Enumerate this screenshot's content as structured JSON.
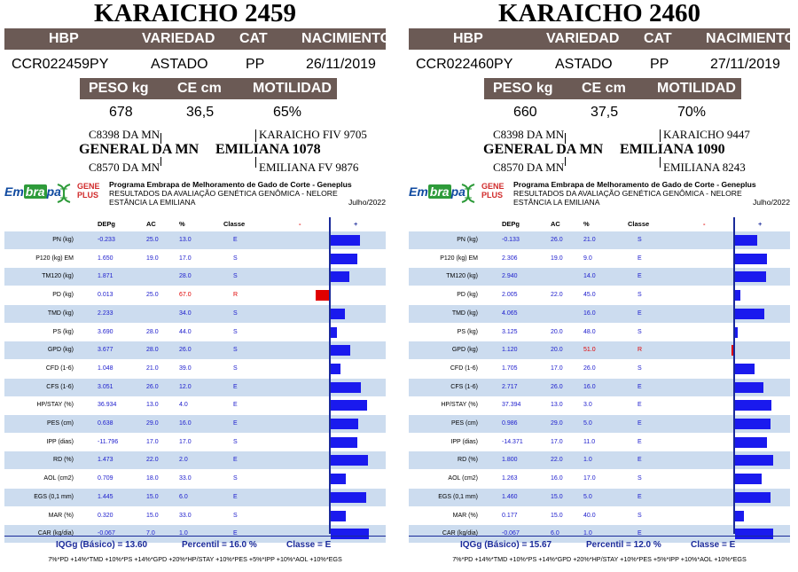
{
  "cards": [
    {
      "title": "KARAICHO 2459",
      "headers": [
        "HBP",
        "VARIEDAD",
        "CAT",
        "NACIMIENTO"
      ],
      "values": [
        "CCR022459PY",
        "ASTADO",
        "PP",
        "26/11/2019"
      ],
      "sub_headers": [
        "PESO kg",
        "CE cm",
        "MOTILIDAD"
      ],
      "sub_values": [
        "678",
        "36,5",
        "65%"
      ],
      "pedigree": {
        "sire_sire": "C8398 DA MN",
        "sire": "GENERAL DA MN",
        "sire_dam": "C8570 DA MN",
        "dam_sire": "KARAICHO FIV 9705",
        "dam": "EMILIANA 1078",
        "dam_dam": "EMILIANA FV 9876"
      },
      "logo_embrapa_a": "Em",
      "logo_embrapa_b": "bra",
      "logo_embrapa_c": "pa",
      "logo_gene_1": "GENE",
      "logo_gene_2": "PLUS",
      "program_line1": "Programa Embrapa de Melhoramento de Gado de Corte - Geneplus",
      "program_line2": "RESULTADOS DA AVALIAÇÃO GENÉTICA GENÔMICA - NELORE",
      "program_line3": "ESTÂNCIA LA EMILIANA",
      "date": "Julho/2022",
      "table_headers": [
        "DEPg",
        "AC",
        "%",
        "Classe",
        "-",
        "+"
      ],
      "rows": [
        {
          "label": "PN (kg)",
          "dep": "-0.233",
          "ac": "25.0",
          "pct": "13.0",
          "cls": "E",
          "bar": 0.55,
          "neg": false
        },
        {
          "label": "P120 (kg) EM",
          "dep": "1.650",
          "ac": "19.0",
          "pct": "17.0",
          "cls": "S",
          "bar": 0.5,
          "neg": false
        },
        {
          "label": "TM120 (kg)",
          "dep": "1.871",
          "ac": "",
          "pct": "28.0",
          "cls": "S",
          "bar": 0.35,
          "neg": false
        },
        {
          "label": "PD (kg)",
          "dep": "0.013",
          "ac": "25.0",
          "pct": "67.0",
          "cls": "R",
          "bar": 0.25,
          "neg": true
        },
        {
          "label": "TMD (kg)",
          "dep": "2.233",
          "ac": "",
          "pct": "34.0",
          "cls": "S",
          "bar": 0.27,
          "neg": false
        },
        {
          "label": "PS (kg)",
          "dep": "3.690",
          "ac": "28.0",
          "pct": "44.0",
          "cls": "S",
          "bar": 0.12,
          "neg": false
        },
        {
          "label": "GPD (kg)",
          "dep": "3.677",
          "ac": "28.0",
          "pct": "26.0",
          "cls": "S",
          "bar": 0.37,
          "neg": false
        },
        {
          "label": "CFD (1-6)",
          "dep": "1.048",
          "ac": "21.0",
          "pct": "39.0",
          "cls": "S",
          "bar": 0.18,
          "neg": false
        },
        {
          "label": "CFS (1-6)",
          "dep": "3.051",
          "ac": "26.0",
          "pct": "12.0",
          "cls": "E",
          "bar": 0.57,
          "neg": false
        },
        {
          "label": "HP/STAY (%)",
          "dep": "36.934",
          "ac": "13.0",
          "pct": "4.0",
          "cls": "E",
          "bar": 0.68,
          "neg": false
        },
        {
          "label": "PES (cm)",
          "dep": "0.638",
          "ac": "29.0",
          "pct": "16.0",
          "cls": "E",
          "bar": 0.51,
          "neg": false
        },
        {
          "label": "IPP (dias)",
          "dep": "-11.796",
          "ac": "17.0",
          "pct": "17.0",
          "cls": "S",
          "bar": 0.5,
          "neg": false
        },
        {
          "label": "RD (%)",
          "dep": "1.473",
          "ac": "22.0",
          "pct": "2.0",
          "cls": "E",
          "bar": 0.7,
          "neg": false
        },
        {
          "label": "AOL (cm2)",
          "dep": "0.709",
          "ac": "18.0",
          "pct": "33.0",
          "cls": "S",
          "bar": 0.28,
          "neg": false
        },
        {
          "label": "EGS (0,1 mm)",
          "dep": "1.445",
          "ac": "15.0",
          "pct": "6.0",
          "cls": "E",
          "bar": 0.66,
          "neg": false
        },
        {
          "label": "MAR (%)",
          "dep": "0.320",
          "ac": "15.0",
          "pct": "33.0",
          "cls": "S",
          "bar": 0.28,
          "neg": false
        },
        {
          "label": "CAR (kg/dia)",
          "dep": "-0.067",
          "ac": "7.0",
          "pct": "1.0",
          "cls": "E",
          "bar": 0.72,
          "neg": false
        }
      ],
      "iqg": "IQGg (Básico) = 13.60",
      "percentil": "Percentil = 16.0 %",
      "classe": "Classe = E",
      "formula": "7%*PD +14%*TMD +10%*PS +14%*GPD +20%*HP/STAY +10%*PES +5%*IPP +10%*AOL +10%*EGS"
    },
    {
      "title": "KARAICHO 2460",
      "headers": [
        "HBP",
        "VARIEDAD",
        "CAT",
        "NACIMIENTO"
      ],
      "values": [
        "CCR022460PY",
        "ASTADO",
        "PP",
        "27/11/2019"
      ],
      "sub_headers": [
        "PESO kg",
        "CE cm",
        "MOTILIDAD"
      ],
      "sub_values": [
        "660",
        "37,5",
        "70%"
      ],
      "pedigree": {
        "sire_sire": "C8398 DA MN",
        "sire": "GENERAL DA MN",
        "sire_dam": "C8570 DA MN",
        "dam_sire": "KARAICHO 9447",
        "dam": "EMILIANA 1090",
        "dam_dam": "EMILIANA 8243"
      },
      "logo_embrapa_a": "Em",
      "logo_embrapa_b": "bra",
      "logo_embrapa_c": "pa",
      "logo_gene_1": "GENE",
      "logo_gene_2": "PLUS",
      "program_line1": "Programa Embrapa de Melhoramento de Gado de Corte - Geneplus",
      "program_line2": "RESULTADOS DA AVALIAÇÃO GENÉTICA GENÔMICA - NELORE",
      "program_line3": "ESTÂNCIA LA EMILIANA",
      "date": "Julho/2022",
      "table_headers": [
        "DEPg",
        "AC",
        "%",
        "Classe",
        "-",
        "+"
      ],
      "rows": [
        {
          "label": "PN (kg)",
          "dep": "-0.133",
          "ac": "26.0",
          "pct": "21.0",
          "cls": "S",
          "bar": 0.42,
          "neg": false
        },
        {
          "label": "P120 (kg) EM",
          "dep": "2.306",
          "ac": "19.0",
          "pct": "9.0",
          "cls": "E",
          "bar": 0.6,
          "neg": false
        },
        {
          "label": "TM120 (kg)",
          "dep": "2.940",
          "ac": "",
          "pct": "14.0",
          "cls": "E",
          "bar": 0.58,
          "neg": false
        },
        {
          "label": "PD (kg)",
          "dep": "2.005",
          "ac": "22.0",
          "pct": "45.0",
          "cls": "S",
          "bar": 0.1,
          "neg": false
        },
        {
          "label": "TMD (kg)",
          "dep": "4.065",
          "ac": "",
          "pct": "16.0",
          "cls": "E",
          "bar": 0.55,
          "neg": false
        },
        {
          "label": "PS (kg)",
          "dep": "3.125",
          "ac": "20.0",
          "pct": "48.0",
          "cls": "S",
          "bar": 0.05,
          "neg": false
        },
        {
          "label": "GPD (kg)",
          "dep": "1.120",
          "ac": "20.0",
          "pct": "51.0",
          "cls": "R",
          "bar": 0.02,
          "neg": true
        },
        {
          "label": "CFD (1-6)",
          "dep": "1.705",
          "ac": "17.0",
          "pct": "26.0",
          "cls": "S",
          "bar": 0.37,
          "neg": false
        },
        {
          "label": "CFS (1-6)",
          "dep": "2.717",
          "ac": "26.0",
          "pct": "16.0",
          "cls": "E",
          "bar": 0.53,
          "neg": false
        },
        {
          "label": "HP/STAY (%)",
          "dep": "37.394",
          "ac": "13.0",
          "pct": "3.0",
          "cls": "E",
          "bar": 0.68,
          "neg": false
        },
        {
          "label": "PES (cm)",
          "dep": "0.986",
          "ac": "29.0",
          "pct": "5.0",
          "cls": "E",
          "bar": 0.67,
          "neg": false
        },
        {
          "label": "IPP (dias)",
          "dep": "-14.371",
          "ac": "17.0",
          "pct": "11.0",
          "cls": "E",
          "bar": 0.6,
          "neg": false
        },
        {
          "label": "RD (%)",
          "dep": "1.800",
          "ac": "22.0",
          "pct": "1.0",
          "cls": "E",
          "bar": 0.72,
          "neg": false
        },
        {
          "label": "AOL (cm2)",
          "dep": "1.263",
          "ac": "16.0",
          "pct": "17.0",
          "cls": "S",
          "bar": 0.5,
          "neg": false
        },
        {
          "label": "EGS (0,1 mm)",
          "dep": "1.460",
          "ac": "15.0",
          "pct": "5.0",
          "cls": "E",
          "bar": 0.67,
          "neg": false
        },
        {
          "label": "MAR (%)",
          "dep": "0.177",
          "ac": "15.0",
          "pct": "40.0",
          "cls": "S",
          "bar": 0.17,
          "neg": false
        },
        {
          "label": "CAR (kg/dia)",
          "dep": "-0.067",
          "ac": "6.0",
          "pct": "1.0",
          "cls": "E",
          "bar": 0.72,
          "neg": false
        }
      ],
      "iqg": "IQGg (Básico) = 15.67",
      "percentil": "Percentil = 12.0 %",
      "classe": "Classe = E",
      "formula": "7%*PD +14%*TMD +10%*PS +14%*GPD +20%*HP/STAY +10%*PES +5%*IPP +10%*AOL +10%*EGS"
    }
  ],
  "colors": {
    "header_bg": "#6b5a55",
    "row_shade": "#ccdcef",
    "bar_pos": "#1a1aee",
    "bar_neg": "#e00000",
    "value_blue": "#1a1acc",
    "axis": "#1a2a9a"
  }
}
